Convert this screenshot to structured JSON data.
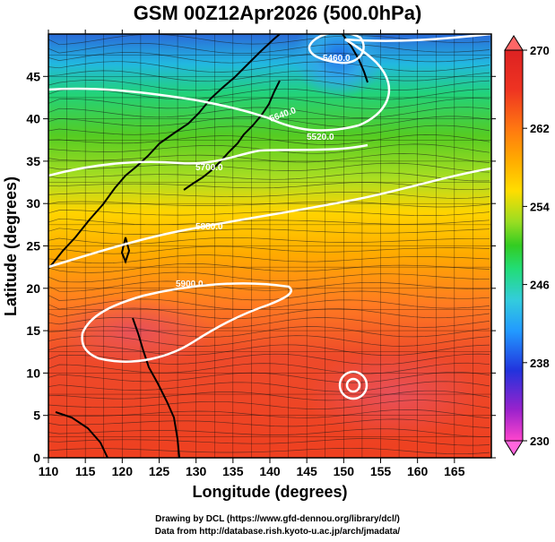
{
  "title": "GSM 00Z12Apr2026 (500.0hPa)",
  "axes": {
    "xlabel": "Longitude (degrees)",
    "ylabel": "Latitude  (degrees)",
    "x_range": [
      110,
      170
    ],
    "y_range": [
      0,
      50
    ],
    "x_ticks": [
      "110",
      "115",
      "120",
      "125",
      "130",
      "135",
      "140",
      "145",
      "150",
      "155",
      "160",
      "165"
    ],
    "y_ticks": [
      "0",
      "5",
      "10",
      "15",
      "20",
      "25",
      "30",
      "35",
      "40",
      "45"
    ]
  },
  "colorbar": {
    "range": [
      230,
      270
    ],
    "tick_labels": [
      "270",
      "262",
      "254",
      "246",
      "238",
      "230"
    ],
    "tick_values": [
      270,
      262,
      254,
      246,
      238,
      230
    ],
    "colors": [
      "#ff44cc",
      "#9922cc",
      "#2233dd",
      "#2299ff",
      "#33ccdd",
      "#22dd77",
      "#33cc22",
      "#99dd22",
      "#ffdd00",
      "#ffaa00",
      "#ff7711",
      "#ee3322",
      "#dd2222"
    ]
  },
  "contours": {
    "labels": [
      "5900.0",
      "5880.0",
      "5700.0",
      "5640.0",
      "5460.0",
      "5520.0"
    ]
  },
  "credits": {
    "line1": "Drawing by DCL (https://www.gfd-dennou.org/library/dcl/)",
    "line2": "Data from http://database.rish.kyoto-u.ac.jp/arch/jmadata/"
  }
}
